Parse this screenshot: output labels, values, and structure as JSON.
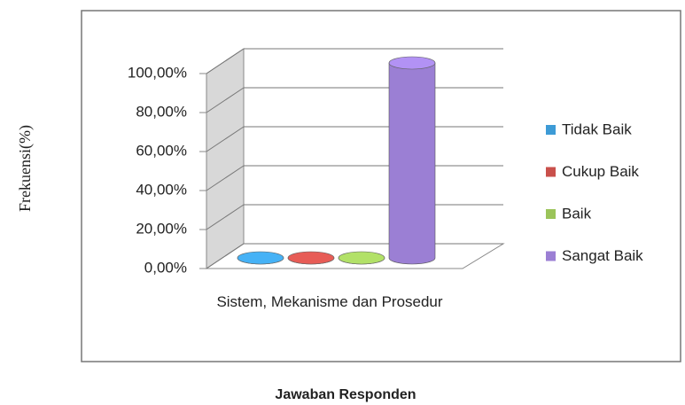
{
  "chart_data": {
    "type": "bar3d",
    "y_label": "Frekuensi(%)",
    "x_label": "Jawaban Responden",
    "categories": [
      "Sistem, Mekanisme dan Prosedur"
    ],
    "series": [
      {
        "name": "Tidak Baik",
        "color": "#3d9bd6",
        "values": [
          0
        ]
      },
      {
        "name": "Cukup Baik",
        "color": "#c9504b",
        "values": [
          0
        ]
      },
      {
        "name": "Baik",
        "color": "#9bc45a",
        "values": [
          0
        ]
      },
      {
        "name": "Sangat Baik",
        "color": "#9b7fd4",
        "values": [
          100
        ]
      }
    ],
    "ylim": [
      0,
      100
    ],
    "yticks": [
      {
        "value": 0,
        "label": "0,00%"
      },
      {
        "value": 20,
        "label": "20,00%"
      },
      {
        "value": 40,
        "label": "40,00%"
      },
      {
        "value": 60,
        "label": "60,00%"
      },
      {
        "value": 80,
        "label": "80,00%"
      },
      {
        "value": 100,
        "label": "100,00%"
      }
    ],
    "grid": true,
    "legend": "right"
  }
}
